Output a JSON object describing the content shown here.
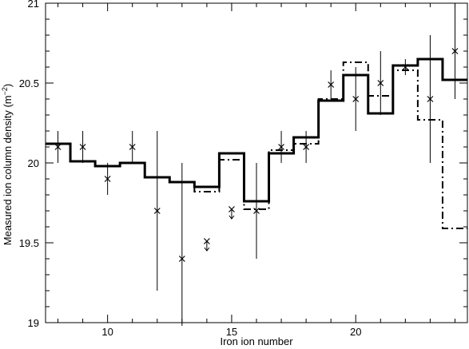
{
  "chart_data": {
    "type": "line",
    "xlabel": "Iron ion number",
    "ylabel_main": "Measured ion column density (m",
    "ylabel_exp": "−2",
    "ylabel_close": ")",
    "xlim": [
      7.5,
      24.5
    ],
    "ylim": [
      19,
      21
    ],
    "xticks": [
      10,
      15,
      20
    ],
    "xtick_labels": [
      "10",
      "15",
      "20"
    ],
    "yticks": [
      19,
      19.5,
      20,
      20.5,
      21
    ],
    "ytick_labels": [
      "19",
      "19.5",
      "20",
      "20.5",
      "21"
    ],
    "grid": false,
    "series": [
      {
        "style": "solid",
        "steps": [
          {
            "x": 8,
            "y": 20.12
          },
          {
            "x": 9,
            "y": 20.01
          },
          {
            "x": 10,
            "y": 19.98
          },
          {
            "x": 11,
            "y": 20.0
          },
          {
            "x": 12,
            "y": 19.91
          },
          {
            "x": 13,
            "y": 19.88
          },
          {
            "x": 14,
            "y": 19.85
          },
          {
            "x": 15,
            "y": 20.06
          },
          {
            "x": 16,
            "y": 19.76
          },
          {
            "x": 17,
            "y": 20.06
          },
          {
            "x": 18,
            "y": 20.16
          },
          {
            "x": 19,
            "y": 20.39
          },
          {
            "x": 20,
            "y": 20.55
          },
          {
            "x": 21,
            "y": 20.31
          },
          {
            "x": 22,
            "y": 20.61
          },
          {
            "x": 23,
            "y": 20.65
          },
          {
            "x": 24,
            "y": 20.52
          }
        ]
      },
      {
        "style": "dash-dot",
        "steps": [
          {
            "x": 8,
            "y": 20.12
          },
          {
            "x": 9,
            "y": 20.01
          },
          {
            "x": 10,
            "y": 19.98
          },
          {
            "x": 11,
            "y": 20.0
          },
          {
            "x": 12,
            "y": 19.91
          },
          {
            "x": 13,
            "y": 19.88
          },
          {
            "x": 14,
            "y": 19.82
          },
          {
            "x": 15,
            "y": 20.02
          },
          {
            "x": 16,
            "y": 19.71
          },
          {
            "x": 17,
            "y": 20.08
          },
          {
            "x": 18,
            "y": 20.12
          },
          {
            "x": 19,
            "y": 20.4
          },
          {
            "x": 20,
            "y": 20.63
          },
          {
            "x": 21,
            "y": 20.42
          },
          {
            "x": 22,
            "y": 20.58
          },
          {
            "x": 23,
            "y": 20.27
          },
          {
            "x": 24,
            "y": 19.59
          }
        ]
      }
    ],
    "measurements": [
      {
        "x": 8,
        "y": 20.1,
        "err_low": 0.1,
        "err_high": 0.1
      },
      {
        "x": 9,
        "y": 20.1,
        "err_low": 0.1,
        "err_high": 0.1
      },
      {
        "x": 10,
        "y": 19.9,
        "err_low": 0.1,
        "err_high": 0.1
      },
      {
        "x": 11,
        "y": 20.1,
        "err_low": 0.1,
        "err_high": 0.1
      },
      {
        "x": 12,
        "y": 19.7,
        "err_low": 0.5,
        "err_high": 0.5
      },
      {
        "x": 13,
        "y": 19.4,
        "err_low": 0.42,
        "err_high": 0.6
      },
      {
        "x": 16,
        "y": 19.7,
        "err_low": 0.3,
        "err_high": 0.3
      },
      {
        "x": 17,
        "y": 20.1,
        "err_low": 0.1,
        "err_high": 0.1
      },
      {
        "x": 18,
        "y": 20.1,
        "err_low": 0.1,
        "err_high": 0.1
      },
      {
        "x": 19,
        "y": 20.49,
        "err_low": 0.09,
        "err_high": 0.09
      },
      {
        "x": 20,
        "y": 20.4,
        "err_low": 0.2,
        "err_high": 0.2
      },
      {
        "x": 21,
        "y": 20.5,
        "err_low": 0.2,
        "err_high": 0.2
      },
      {
        "x": 22,
        "y": 20.6,
        "err_low": 0.05,
        "err_high": 0.05
      },
      {
        "x": 23,
        "y": 20.4,
        "err_low": 0.4,
        "err_high": 0.4
      },
      {
        "x": 24,
        "y": 20.7,
        "err_low": 0.3,
        "err_high": 0.3
      }
    ],
    "upper_limits": [
      {
        "x": 14,
        "y": 19.51
      },
      {
        "x": 15,
        "y": 19.71
      }
    ]
  }
}
